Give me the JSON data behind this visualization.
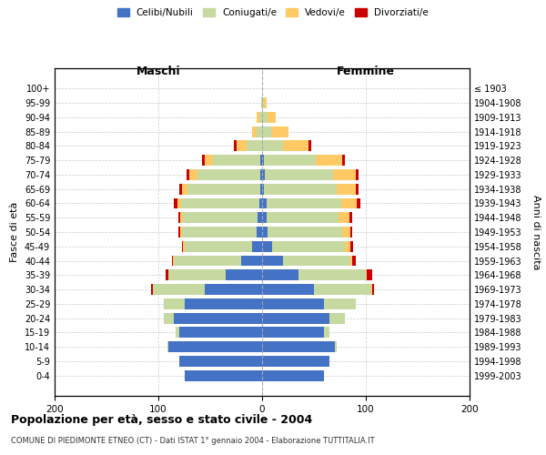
{
  "age_groups": [
    "0-4",
    "5-9",
    "10-14",
    "15-19",
    "20-24",
    "25-29",
    "30-34",
    "35-39",
    "40-44",
    "45-49",
    "50-54",
    "55-59",
    "60-64",
    "65-69",
    "70-74",
    "75-79",
    "80-84",
    "85-89",
    "90-94",
    "95-99",
    "100+"
  ],
  "birth_years": [
    "1999-2003",
    "1994-1998",
    "1989-1993",
    "1984-1988",
    "1979-1983",
    "1974-1978",
    "1969-1973",
    "1964-1968",
    "1959-1963",
    "1954-1958",
    "1949-1953",
    "1944-1948",
    "1939-1943",
    "1934-1938",
    "1929-1933",
    "1924-1928",
    "1919-1923",
    "1914-1918",
    "1909-1913",
    "1904-1908",
    "≤ 1903"
  ],
  "male": {
    "celibe": [
      75,
      80,
      90,
      80,
      85,
      75,
      55,
      35,
      20,
      10,
      5,
      4,
      3,
      2,
      2,
      2,
      0,
      0,
      0,
      0,
      0
    ],
    "coniugato": [
      0,
      0,
      1,
      3,
      10,
      20,
      50,
      55,
      65,
      65,
      72,
      72,
      75,
      70,
      60,
      45,
      15,
      5,
      3,
      1,
      0
    ],
    "vedovo": [
      0,
      0,
      0,
      0,
      0,
      0,
      0,
      0,
      1,
      1,
      2,
      3,
      4,
      5,
      8,
      8,
      10,
      5,
      2,
      0,
      0
    ],
    "divorziato": [
      0,
      0,
      0,
      0,
      0,
      0,
      2,
      3,
      1,
      1,
      2,
      2,
      3,
      3,
      3,
      3,
      2,
      0,
      0,
      0,
      0
    ]
  },
  "female": {
    "nubile": [
      60,
      65,
      70,
      60,
      65,
      60,
      50,
      35,
      20,
      10,
      5,
      4,
      4,
      2,
      3,
      2,
      0,
      0,
      0,
      0,
      0
    ],
    "coniugata": [
      0,
      0,
      2,
      5,
      15,
      30,
      55,
      65,
      65,
      70,
      72,
      70,
      72,
      70,
      65,
      50,
      20,
      10,
      5,
      2,
      0
    ],
    "vedova": [
      0,
      0,
      0,
      0,
      0,
      0,
      1,
      1,
      2,
      5,
      8,
      10,
      15,
      18,
      22,
      25,
      25,
      15,
      8,
      2,
      0
    ],
    "divorziata": [
      0,
      0,
      0,
      0,
      0,
      0,
      2,
      5,
      3,
      3,
      2,
      3,
      4,
      3,
      3,
      3,
      2,
      0,
      0,
      0,
      0
    ]
  },
  "colors": {
    "celibe": "#4472C4",
    "coniugato": "#c5d9a0",
    "vedovo": "#ffc966",
    "divorziato": "#cc0000"
  },
  "xlim": [
    -200,
    200
  ],
  "xticks": [
    -200,
    -100,
    0,
    100,
    200
  ],
  "xticklabels": [
    "200",
    "100",
    "0",
    "100",
    "200"
  ],
  "title": "Popolazione per età, sesso e stato civile - 2004",
  "subtitle": "COMUNE DI PIEDIMONTE ETNEO (CT) - Dati ISTAT 1° gennaio 2004 - Elaborazione TUTTITALIA.IT",
  "ylabel_left": "Fasce di età",
  "ylabel_right": "Anni di nascita",
  "label_maschi": "Maschi",
  "label_femmine": "Femmine",
  "legend_labels": [
    "Celibi/Nubili",
    "Coniugati/e",
    "Vedovi/e",
    "Divorziati/e"
  ],
  "background_color": "#ffffff",
  "grid_color": "#cccccc"
}
